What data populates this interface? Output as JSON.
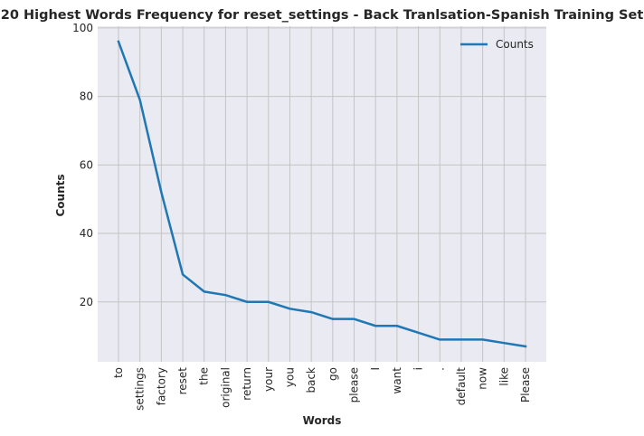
{
  "chart_data": {
    "type": "line",
    "title": "20 Highest Words Frequency for reset_settings - Back Tranlsation-Spanish Training Set",
    "xlabel": "Words",
    "ylabel": "Counts",
    "categories": [
      "to",
      "settings",
      "factory",
      "reset",
      "the",
      "original",
      "return",
      "your",
      "you",
      "back",
      "go",
      "please",
      "I",
      "want",
      "i",
      ".",
      "default",
      "now",
      "like",
      "Please"
    ],
    "series": [
      {
        "name": "Counts",
        "values": [
          96,
          79,
          52,
          28,
          23,
          22,
          20,
          20,
          18,
          17,
          15,
          15,
          13,
          13,
          11,
          9,
          9,
          9,
          8,
          7
        ],
        "color": "#1f77b4"
      }
    ],
    "ylim": [
      2.5,
      100.5
    ],
    "yticks": [
      20,
      40,
      60,
      80,
      100
    ],
    "grid": true,
    "legend": "top-right",
    "background": "#eaeaf2",
    "grid_color": "#c4c4c4"
  }
}
